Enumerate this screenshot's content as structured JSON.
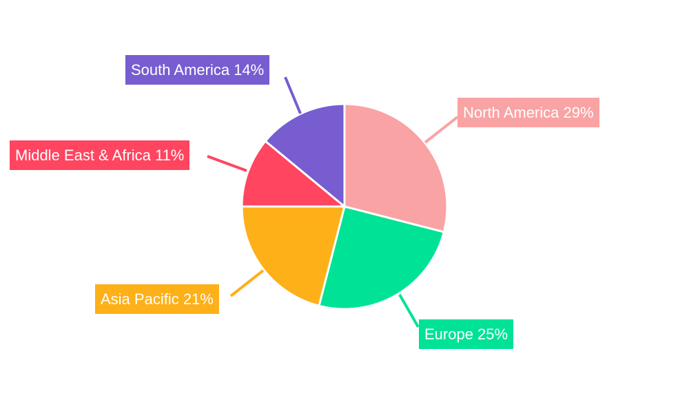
{
  "chart_data": {
    "type": "pie",
    "categories": [
      "North America",
      "Europe",
      "Asia Pacific",
      "Middle East & Africa",
      "South America"
    ],
    "values": [
      29,
      25,
      21,
      11,
      14
    ],
    "unit": "%",
    "colors": [
      "#F9A3A4",
      "#00E396",
      "#FEB019",
      "#FF4560",
      "#775DD0"
    ],
    "start_angle": "top, clockwise",
    "legend": "none (data labels with leader lines)"
  }
}
